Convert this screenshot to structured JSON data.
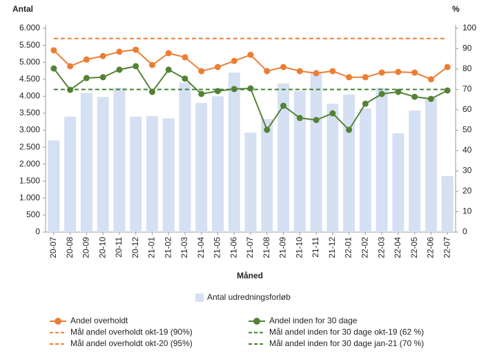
{
  "chart_data": {
    "type": "bar_line",
    "y_label": "Antal",
    "y2_label": "%",
    "x_label": "Måned",
    "categories": [
      "20-07",
      "20-08",
      "20-09",
      "20-10",
      "20-11",
      "20-12",
      "21-01",
      "21-02",
      "21-03",
      "21-04",
      "21-05",
      "21-06",
      "21-07",
      "21-08",
      "21-09",
      "21-10",
      "21-11",
      "21-12",
      "22-01",
      "22-02",
      "22-03",
      "22-04",
      "22-05",
      "22-06",
      "22-07"
    ],
    "ylim": [
      0,
      6000
    ],
    "yticks": [
      0,
      500,
      {
        "value": 1000,
        "label": "1.000"
      },
      {
        "value": 1500,
        "label": "1.500"
      },
      {
        "value": 2000,
        "label": "2.000"
      },
      {
        "value": 2500,
        "label": "2.500"
      },
      {
        "value": 3000,
        "label": "3.000"
      },
      {
        "value": 3500,
        "label": "3.500"
      },
      {
        "value": 4000,
        "label": "4.000"
      },
      {
        "value": 4500,
        "label": "4.500"
      },
      {
        "value": 5000,
        "label": "5.000"
      },
      {
        "value": 5500,
        "label": "5.500"
      },
      {
        "value": 6000,
        "label": "6.000"
      }
    ],
    "y2lim": [
      0,
      100
    ],
    "y2ticks": [
      0,
      10,
      20,
      30,
      40,
      50,
      60,
      70,
      80,
      90,
      100
    ],
    "series": [
      {
        "name": "Antal udredningsforløb",
        "color": "#d6e0f3",
        "style": "bar",
        "axis": "y",
        "values": [
          2700,
          3400,
          4100,
          3980,
          4250,
          3400,
          3420,
          3350,
          4400,
          3800,
          4000,
          4700,
          2930,
          3330,
          4380,
          4150,
          4700,
          3780,
          4050,
          3640,
          4250,
          2910,
          3580,
          3950,
          1650
        ]
      },
      {
        "name": "Andel overholdt",
        "color": "#ed7d31",
        "style": "solid",
        "axis": "y2",
        "values": [
          89.2,
          81.4,
          84.7,
          86.4,
          88.5,
          89.5,
          82,
          87.8,
          85.8,
          79,
          81,
          84,
          87,
          79,
          81,
          79,
          78,
          79,
          76,
          76,
          78.3,
          78.6,
          78.3,
          75,
          81
        ]
      },
      {
        "name": "Andel inden for 30 dage",
        "color": "#548235",
        "style": "solid",
        "axis": "y2",
        "values": [
          80.3,
          69.8,
          75.6,
          76,
          79.7,
          81.4,
          68.8,
          79.7,
          75.3,
          67.8,
          69.2,
          70.2,
          70.5,
          50.2,
          62,
          56,
          55,
          58.3,
          50.2,
          63,
          67.8,
          68.8,
          66.4,
          65.4,
          69.5
        ]
      },
      {
        "name": "Mål andel overholdt okt-19 (90%)",
        "color": "#ed7d31",
        "style": "dashed",
        "axis": "y2",
        "values": [
          null,
          null,
          null,
          null,
          null,
          null,
          null,
          null,
          null,
          null,
          null,
          null,
          null,
          null,
          null,
          null,
          null,
          null,
          null,
          null,
          null,
          null,
          null,
          null,
          null
        ]
      },
      {
        "name": "Mål andel inden for 30 dage okt-19 (62 %)",
        "color": "#3f7f2f",
        "style": "dashed",
        "axis": "y2",
        "values": [
          null,
          null,
          null,
          null,
          null,
          null,
          null,
          null,
          null,
          null,
          null,
          null,
          null,
          null,
          null,
          null,
          null,
          null,
          null,
          null,
          null,
          null,
          null,
          null,
          null
        ]
      },
      {
        "name": "Mål andel overholdt okt-20 (95%)",
        "color": "#ed7d31",
        "style": "dashed",
        "axis": "y2",
        "values": [
          95,
          95,
          95,
          95,
          95,
          95,
          95,
          95,
          95,
          95,
          95,
          95,
          95,
          95,
          95,
          95,
          95,
          95,
          95,
          95,
          95,
          95,
          95,
          95,
          95
        ]
      },
      {
        "name": "Mål andel inden for 30 dage jan-21 (70 %)",
        "color": "#3f7f2f",
        "style": "dashed",
        "axis": "y2",
        "values": [
          70,
          70,
          70,
          70,
          70,
          70,
          70,
          70,
          70,
          70,
          70,
          70,
          70,
          70,
          70,
          70,
          70,
          70,
          70,
          70,
          70,
          70,
          70,
          70,
          70
        ]
      }
    ]
  }
}
